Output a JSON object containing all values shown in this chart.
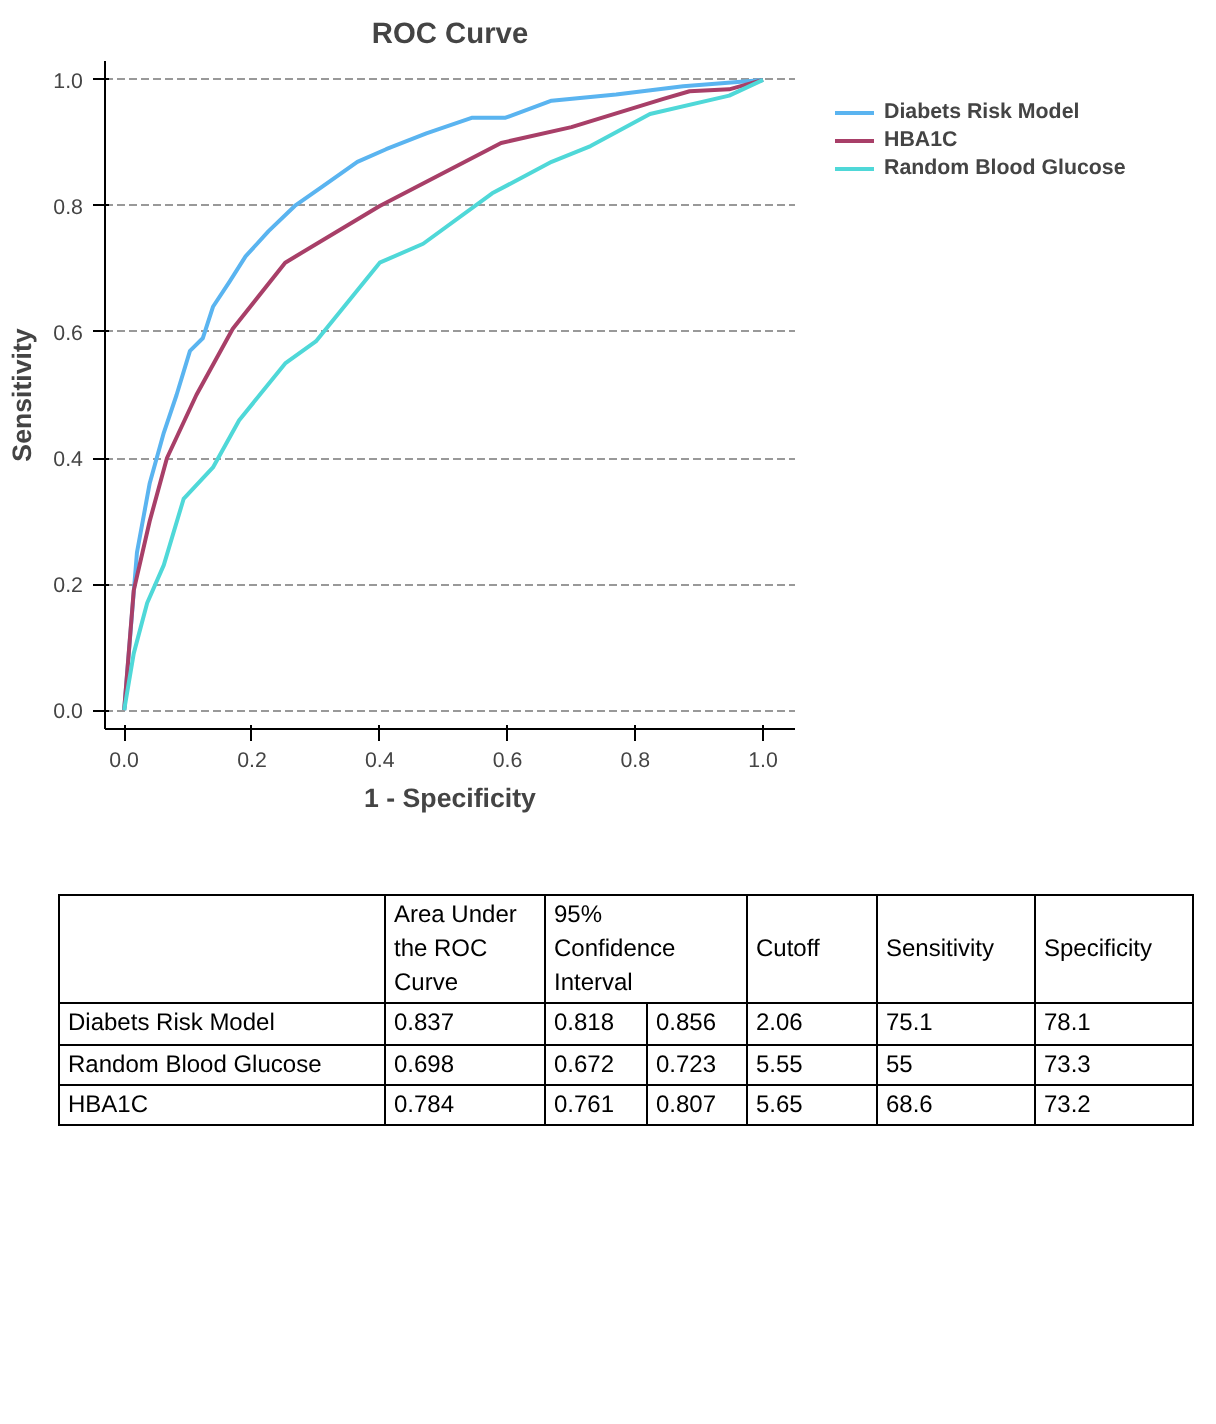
{
  "chart_data": {
    "type": "line",
    "title": "ROC Curve",
    "xlabel": "1 - Specificity",
    "ylabel": "Sensitivity",
    "xlim": [
      -0.03,
      1.05
    ],
    "ylim": [
      -0.03,
      1.03
    ],
    "xticks": [
      {
        "value": 0,
        "label": "0.0"
      },
      0.2,
      0.4,
      0.6,
      0.8,
      {
        "value": 1,
        "label": "1.0"
      }
    ],
    "yticks": [
      {
        "value": 0,
        "label": "0.0"
      },
      0.2,
      0.4,
      0.6,
      0.8,
      {
        "value": 1,
        "label": "1.0"
      }
    ],
    "grid": "y",
    "legend": "right",
    "line_style": "solid",
    "marker": "none",
    "series": [
      {
        "name": "Diabets Risk Model",
        "color": "#5ab4f0",
        "x": [
          0,
          0.02,
          0.04,
          0.062,
          0.082,
          0.103,
          0.123,
          0.139,
          0.165,
          0.19,
          0.226,
          0.267,
          0.309,
          0.365,
          0.41,
          0.473,
          0.545,
          0.597,
          0.669,
          0.77,
          0.875,
          1
        ],
        "values": [
          0,
          0.25,
          0.36,
          0.44,
          0.5,
          0.57,
          0.59,
          0.64,
          0.68,
          0.72,
          0.76,
          0.8,
          0.83,
          0.87,
          0.89,
          0.915,
          0.94,
          0.94,
          0.967,
          0.977,
          0.99,
          1
        ]
      },
      {
        "name": "HBA1C",
        "color": "#a83f68",
        "x": [
          0,
          0.015,
          0.04,
          0.067,
          0.113,
          0.17,
          0.252,
          0.4,
          0.59,
          0.7,
          0.844,
          0.885,
          0.947,
          1
        ],
        "values": [
          0,
          0.19,
          0.3,
          0.4,
          0.5,
          0.605,
          0.71,
          0.8,
          0.9,
          0.925,
          0.97,
          0.982,
          0.985,
          1
        ]
      },
      {
        "name": "Random Blood Glucose",
        "color": "#4fd8d8",
        "x": [
          0,
          0.015,
          0.036,
          0.062,
          0.093,
          0.139,
          0.18,
          0.252,
          0.3,
          0.4,
          0.468,
          0.576,
          0.669,
          0.73,
          0.823,
          0.947,
          1
        ],
        "values": [
          0,
          0.09,
          0.17,
          0.23,
          0.335,
          0.385,
          0.46,
          0.55,
          0.585,
          0.71,
          0.74,
          0.82,
          0.87,
          0.895,
          0.946,
          0.975,
          1
        ]
      }
    ],
    "annotations": [
      "Area Under the ROC Curve",
      "95% Confidence Interval",
      "Cutoff",
      "Sensitivity",
      "Specificity",
      "Diabets Risk Model",
      "0.837",
      "0.818",
      "0.856",
      "2.06",
      "75.1",
      "78.1",
      "Random Blood Glucose",
      "0.698",
      "0.672",
      "0.723",
      "5.55",
      "55",
      "73.3",
      "HBA1C",
      "0.784",
      "0.761",
      "0.807",
      "5.65",
      "68.6",
      "73.2"
    ]
  }
}
